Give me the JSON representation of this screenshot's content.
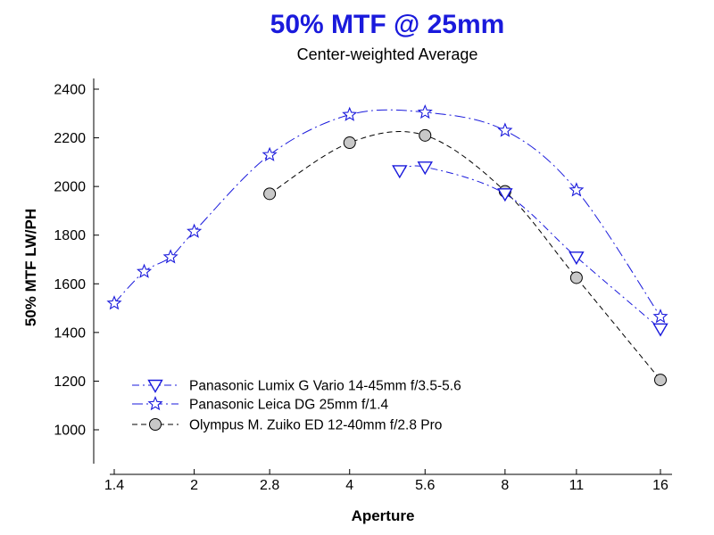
{
  "chart_data": {
    "type": "line",
    "title": "50% MTF @ 25mm",
    "subtitle": "Center-weighted Average",
    "xlabel": "Aperture",
    "ylabel": "50% MTF  LW/PH",
    "x_ticks": [
      "1.4",
      "2",
      "2.8",
      "4",
      "5.6",
      "8",
      "11",
      "16"
    ],
    "x_tick_values": [
      1.4,
      2,
      2.8,
      4,
      5.6,
      8,
      11,
      16
    ],
    "x_scale": "log",
    "xlim": [
      1.4,
      16
    ],
    "ylim": [
      1000,
      2400
    ],
    "y_ticks": [
      1000,
      1200,
      1400,
      1600,
      1800,
      2000,
      2200,
      2400
    ],
    "grid": false,
    "legend_position": "bottom-left",
    "series": [
      {
        "name": "Panasonic Lumix G Vario 14-45mm f/3.5-5.6",
        "color": "#1a1adc",
        "line_style": "dash-dot",
        "marker": "triangle-down",
        "x": [
          5.0,
          5.6,
          8,
          11,
          16
        ],
        "y": [
          2065,
          2080,
          1970,
          1710,
          1415
        ]
      },
      {
        "name": "Panasonic Leica DG 25mm f/1.4",
        "color": "#1a1adc",
        "line_style": "long-dash-dot",
        "marker": "star",
        "x": [
          1.4,
          1.6,
          1.8,
          2,
          2.8,
          4,
          5.6,
          8,
          11,
          16
        ],
        "y": [
          1520,
          1650,
          1710,
          1815,
          2130,
          2295,
          2305,
          2230,
          1985,
          1465
        ]
      },
      {
        "name": "Olympus M. Zuiko ED 12-40mm f/2.8 Pro",
        "color": "#000000",
        "line_style": "dashed",
        "marker": "circle",
        "x": [
          2.8,
          4,
          5.6,
          8,
          11,
          16
        ],
        "y": [
          1970,
          2180,
          2210,
          1980,
          1625,
          1205
        ]
      }
    ]
  }
}
